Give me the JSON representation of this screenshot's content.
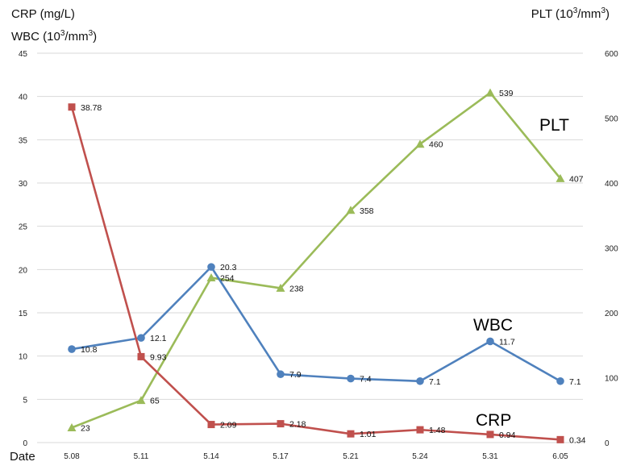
{
  "chart_data": {
    "type": "line",
    "categories": [
      "5.08",
      "5.11",
      "5.14",
      "5.17",
      "5.21",
      "5.24",
      "5.31",
      "6.05"
    ],
    "xlabel": "Date",
    "left_axis": {
      "title_line1": "CRP (mg/L)",
      "title_line2_prefix": "WBC (10",
      "title_line2_sup": "3",
      "title_line2_unit": "/mm",
      "title_line2_sup2": "3",
      "title_line2_suffix": ")",
      "ylim": [
        0,
        45
      ],
      "ticks": [
        "0",
        "5",
        "10",
        "15",
        "20",
        "25",
        "30",
        "35",
        "40",
        "45"
      ]
    },
    "right_axis": {
      "title_prefix": "PLT (10",
      "title_sup": "3",
      "title_unit": "/mm",
      "title_sup2": "3",
      "title_suffix": ")",
      "ylim": [
        0,
        600
      ],
      "ticks": [
        "0",
        "100",
        "200",
        "300",
        "400",
        "500",
        "600"
      ]
    },
    "grid": true,
    "series": [
      {
        "name": "PLT",
        "axis": "right",
        "color": "#9bbb59",
        "marker": "triangle",
        "values": [
          23,
          65,
          254,
          238,
          358,
          460,
          539,
          407
        ],
        "labels": [
          "23",
          "65",
          "254",
          "238",
          "358",
          "460",
          "539",
          "407"
        ]
      },
      {
        "name": "WBC",
        "axis": "left",
        "color": "#4f81bd",
        "marker": "circle",
        "values": [
          10.8,
          12.1,
          20.3,
          7.9,
          7.4,
          7.1,
          11.7,
          7.1
        ],
        "labels": [
          "10.8",
          "12.1",
          "20.3",
          "7.9",
          "7.4",
          "7.1",
          "11.7",
          "7.1"
        ]
      },
      {
        "name": "CRP",
        "axis": "left",
        "color": "#c0504d",
        "marker": "square",
        "values": [
          38.78,
          9.93,
          2.09,
          2.18,
          1.01,
          1.48,
          0.94,
          0.34
        ],
        "labels": [
          "38.78",
          "9.93",
          "2.09",
          "2.18",
          "1.01",
          "1.48",
          "0.94",
          "0.34"
        ]
      }
    ]
  }
}
